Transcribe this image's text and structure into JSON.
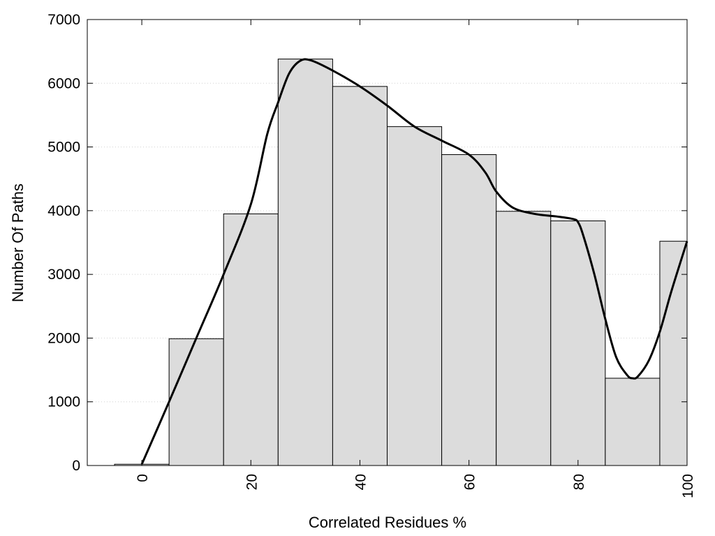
{
  "chart_data": {
    "type": "bar",
    "title": "",
    "xlabel": "Correlated Residues %",
    "ylabel": "Number Of Paths",
    "xlim": [
      -10,
      100
    ],
    "ylim": [
      0,
      7000
    ],
    "x_ticks": [
      "0",
      "20",
      "40",
      "60",
      "80",
      "100"
    ],
    "y_ticks": [
      "0",
      "1000",
      "2000",
      "3000",
      "4000",
      "5000",
      "6000",
      "7000"
    ],
    "grid": "horizontal dotted",
    "bin_width": 10,
    "bars": [
      {
        "x": 0,
        "value": 20
      },
      {
        "x": 10,
        "value": 1990
      },
      {
        "x": 20,
        "value": 3950
      },
      {
        "x": 30,
        "value": 6380
      },
      {
        "x": 40,
        "value": 5950
      },
      {
        "x": 50,
        "value": 5320
      },
      {
        "x": 60,
        "value": 4880
      },
      {
        "x": 70,
        "value": 3990
      },
      {
        "x": 80,
        "value": 3840
      },
      {
        "x": 90,
        "value": 1370
      },
      {
        "x": 100,
        "value": 3520
      }
    ],
    "smooth_curve": [
      [
        0,
        20
      ],
      [
        5,
        1000
      ],
      [
        10,
        2000
      ],
      [
        15,
        3000
      ],
      [
        20,
        4100
      ],
      [
        23,
        5200
      ],
      [
        25,
        5700
      ],
      [
        27,
        6150
      ],
      [
        29,
        6350
      ],
      [
        31,
        6360
      ],
      [
        35,
        6200
      ],
      [
        40,
        5950
      ],
      [
        45,
        5650
      ],
      [
        50,
        5320
      ],
      [
        55,
        5100
      ],
      [
        60,
        4880
      ],
      [
        63,
        4600
      ],
      [
        65,
        4300
      ],
      [
        68,
        4050
      ],
      [
        72,
        3950
      ],
      [
        76,
        3910
      ],
      [
        79,
        3870
      ],
      [
        80,
        3820
      ],
      [
        81,
        3600
      ],
      [
        83,
        3000
      ],
      [
        85,
        2300
      ],
      [
        87,
        1700
      ],
      [
        89,
        1420
      ],
      [
        90,
        1370
      ],
      [
        91,
        1400
      ],
      [
        93,
        1650
      ],
      [
        95,
        2100
      ],
      [
        97,
        2700
      ],
      [
        99,
        3250
      ],
      [
        100,
        3520
      ]
    ],
    "colors": {
      "bar_fill": "#dcdcdc",
      "bar_stroke": "#000000",
      "curve": "#000000",
      "grid": "#d0d0d0"
    }
  }
}
